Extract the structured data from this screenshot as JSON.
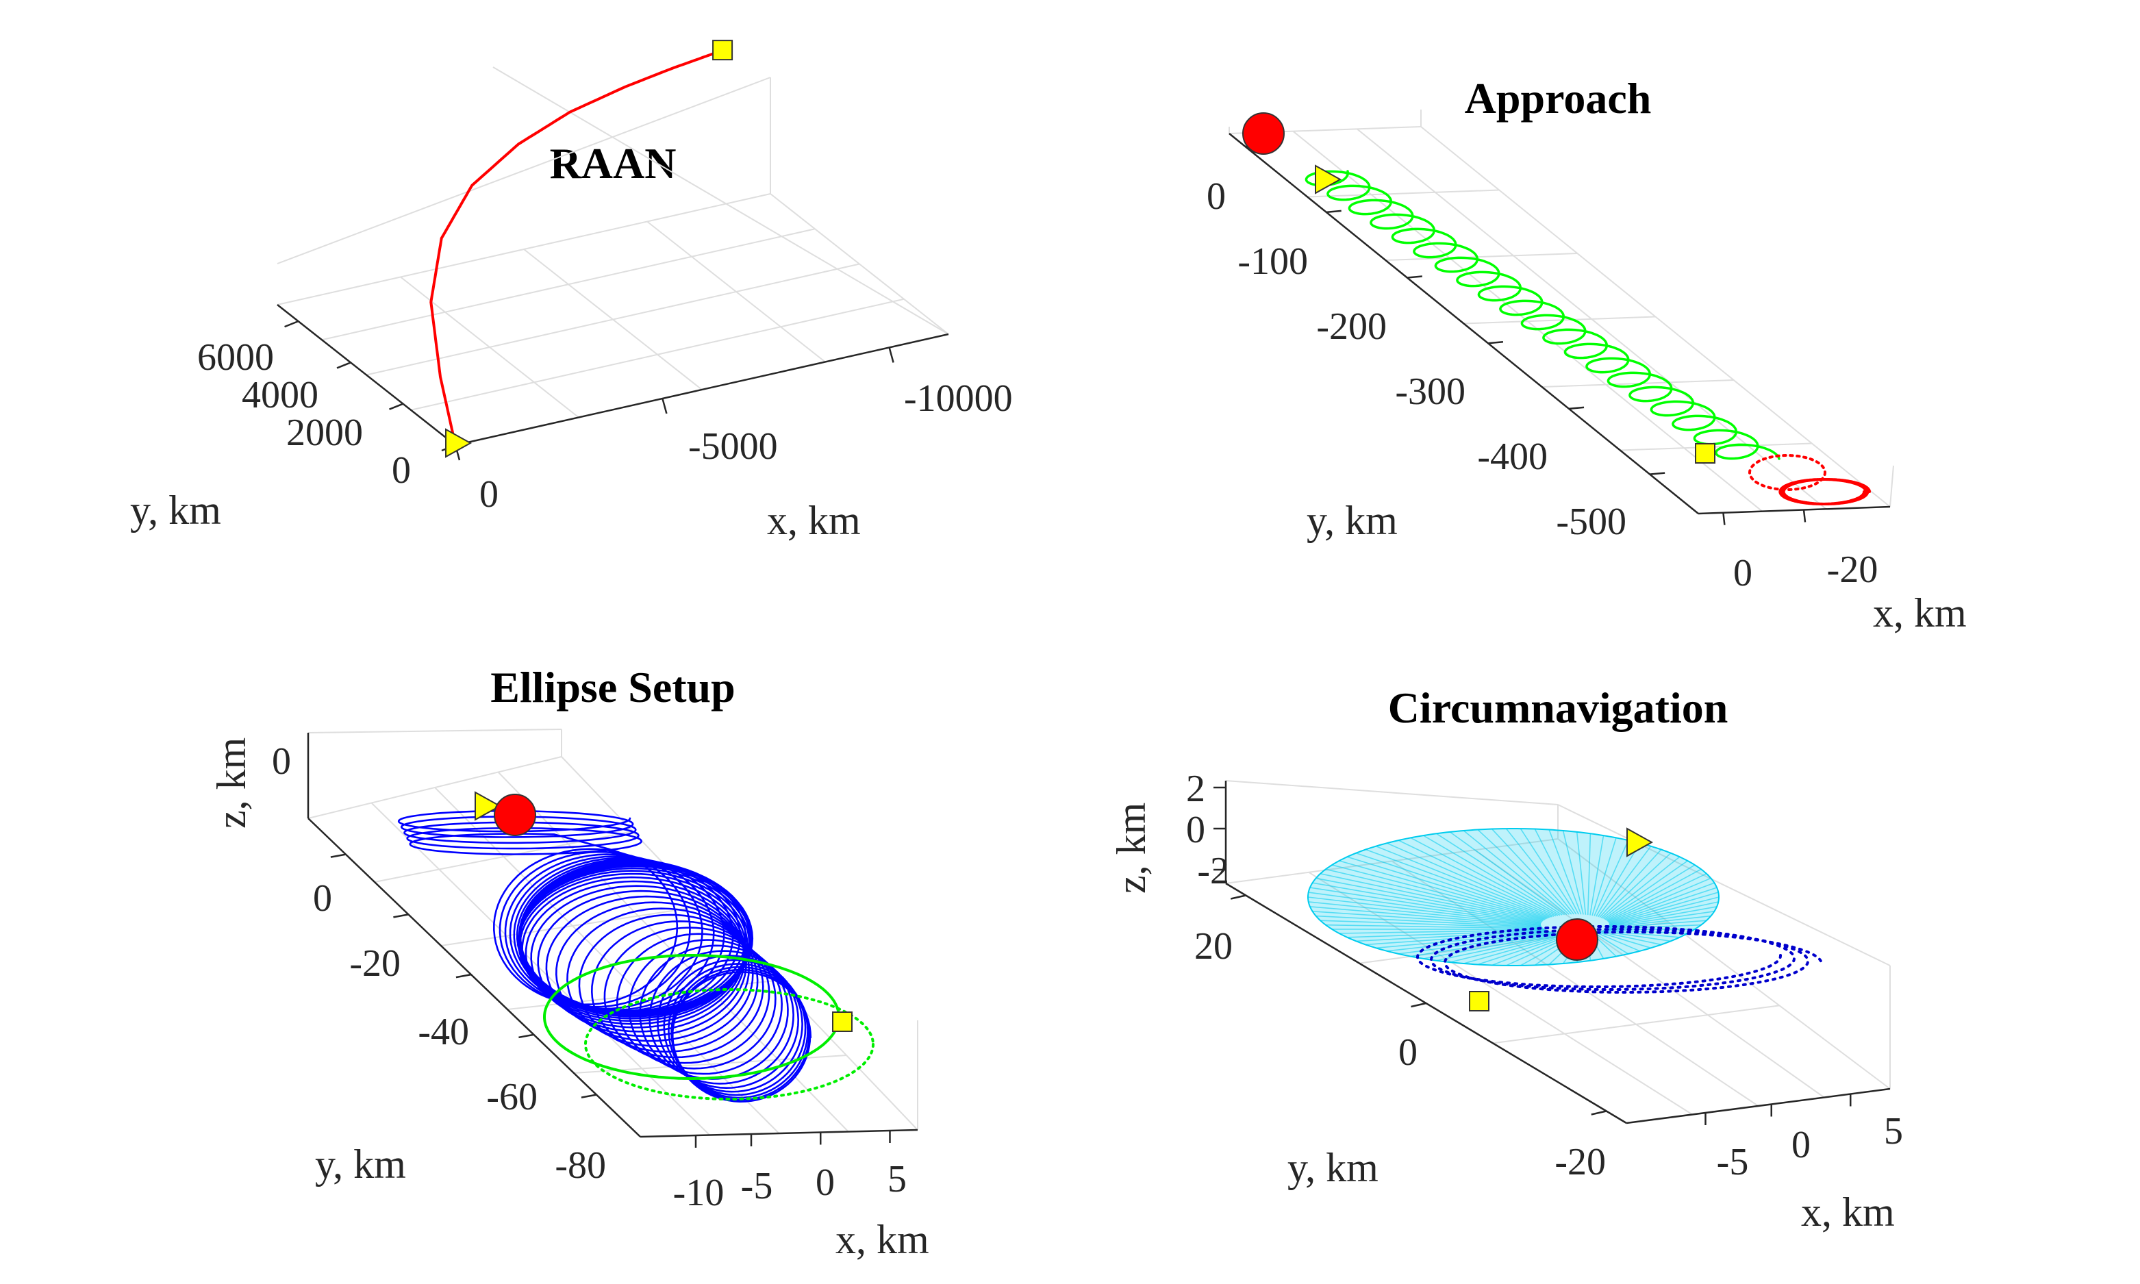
{
  "chart_data": [
    {
      "type": "line",
      "title": "RAAN",
      "xlabel": "x, km",
      "ylabel": "y, km",
      "x_ticks": [
        "0",
        "-5000",
        "-10000"
      ],
      "y_ticks": [
        "0",
        "2000",
        "4000",
        "6000"
      ],
      "xlim": [
        0,
        -12000
      ],
      "ylim": [
        0,
        7000
      ],
      "series": [
        {
          "color": "#ff0000",
          "style": "solid",
          "x": [
            0,
            -500,
            -1200,
            -2200,
            -3500,
            -5000,
            -6500,
            -8000,
            -9200,
            -10000,
            -10400,
            -10550
          ],
          "y": [
            0,
            1400,
            2900,
            4100,
            5000,
            5600,
            6000,
            6250,
            6400,
            6480,
            6520,
            6540
          ]
        }
      ],
      "markers": [
        {
          "shape": "triangle",
          "color": "#ffff00",
          "x": 0,
          "y": 0
        },
        {
          "shape": "square",
          "color": "#ffff00",
          "x": -10550,
          "y": 6540
        }
      ]
    },
    {
      "type": "line",
      "title": "Approach",
      "xlabel": "x, km",
      "ylabel": "y, km",
      "x_ticks": [
        "0",
        "-20"
      ],
      "y_ticks": [
        "0",
        "-100",
        "-200",
        "-300",
        "-400",
        "-500"
      ],
      "xlim": [
        5,
        -25
      ],
      "ylim": [
        -560,
        40
      ],
      "series": [
        {
          "color": "#00ff00",
          "style": "solid",
          "y_start": 0,
          "y_end": -480,
          "loops": 20,
          "x_amplitude": 10
        },
        {
          "color": "#ff0000",
          "style": "solid",
          "y_center": -500,
          "loops": 3,
          "x_amplitude": 12
        },
        {
          "color": "#ff0000",
          "style": "dotted",
          "y_center": -490,
          "loops": 2,
          "x_amplitude": 10
        }
      ],
      "markers": [
        {
          "shape": "circle",
          "color": "#ff0000",
          "x": 0,
          "y": 30
        },
        {
          "shape": "triangle",
          "color": "#ffff00",
          "x": -3,
          "y": 10
        },
        {
          "shape": "square",
          "color": "#ffff00",
          "x": 0,
          "y": -480
        }
      ]
    },
    {
      "type": "line",
      "title": "Ellipse Setup",
      "xlabel": "x, km",
      "ylabel": "y, km",
      "zlabel": "z, km",
      "x_ticks": [
        "-10",
        "-5",
        "0",
        "5"
      ],
      "y_ticks": [
        "0",
        "-20",
        "-40",
        "-60",
        "-80"
      ],
      "z_ticks": [
        "0"
      ],
      "xlim": [
        -12,
        8
      ],
      "ylim": [
        -85,
        20
      ],
      "zlim": [
        -5,
        2
      ],
      "series": [
        {
          "color": "#0000ff",
          "style": "solid",
          "y_start": 15,
          "y_end": -60,
          "loops": 40,
          "x_amplitude": 6
        },
        {
          "color": "#00ee00",
          "style": "solid",
          "y_center": -60,
          "loops": 1,
          "x_amplitude": 8
        },
        {
          "color": "#00ee00",
          "style": "dotted",
          "y_center": -65,
          "loops": 1,
          "x_amplitude": 9
        }
      ],
      "markers": [
        {
          "shape": "circle",
          "color": "#ff0000",
          "x": 0,
          "y": 15
        },
        {
          "shape": "triangle",
          "color": "#ffff00",
          "x": -3,
          "y": 15
        },
        {
          "shape": "square",
          "color": "#ffff00",
          "x": 2,
          "y": -68
        }
      ]
    },
    {
      "type": "line",
      "title": "Circumnavigation",
      "xlabel": "x, km",
      "ylabel": "y, km",
      "zlabel": "z, km",
      "x_ticks": [
        "-5",
        "0",
        "5"
      ],
      "y_ticks": [
        "20",
        "0",
        "-20"
      ],
      "z_ticks": [
        "2",
        "0",
        "-2"
      ],
      "xlim": [
        -8,
        8
      ],
      "ylim": [
        -25,
        25
      ],
      "zlim": [
        -3,
        3
      ],
      "series": [
        {
          "color": "#00ccee",
          "style": "solid",
          "name_hidden": true,
          "fill": "surface",
          "x_amplitude": 7,
          "y_amplitude": 20
        },
        {
          "color": "#0000cc",
          "style": "dotted",
          "loops": 3,
          "x_amplitude": 6,
          "y_amplitude": 18
        }
      ],
      "markers": [
        {
          "shape": "circle",
          "color": "#ff0000",
          "x": 0,
          "y": 0
        },
        {
          "shape": "triangle",
          "color": "#ffff00",
          "x": 5,
          "y": 20
        },
        {
          "shape": "square",
          "color": "#ffff00",
          "x": -5,
          "y": -15
        }
      ]
    }
  ]
}
